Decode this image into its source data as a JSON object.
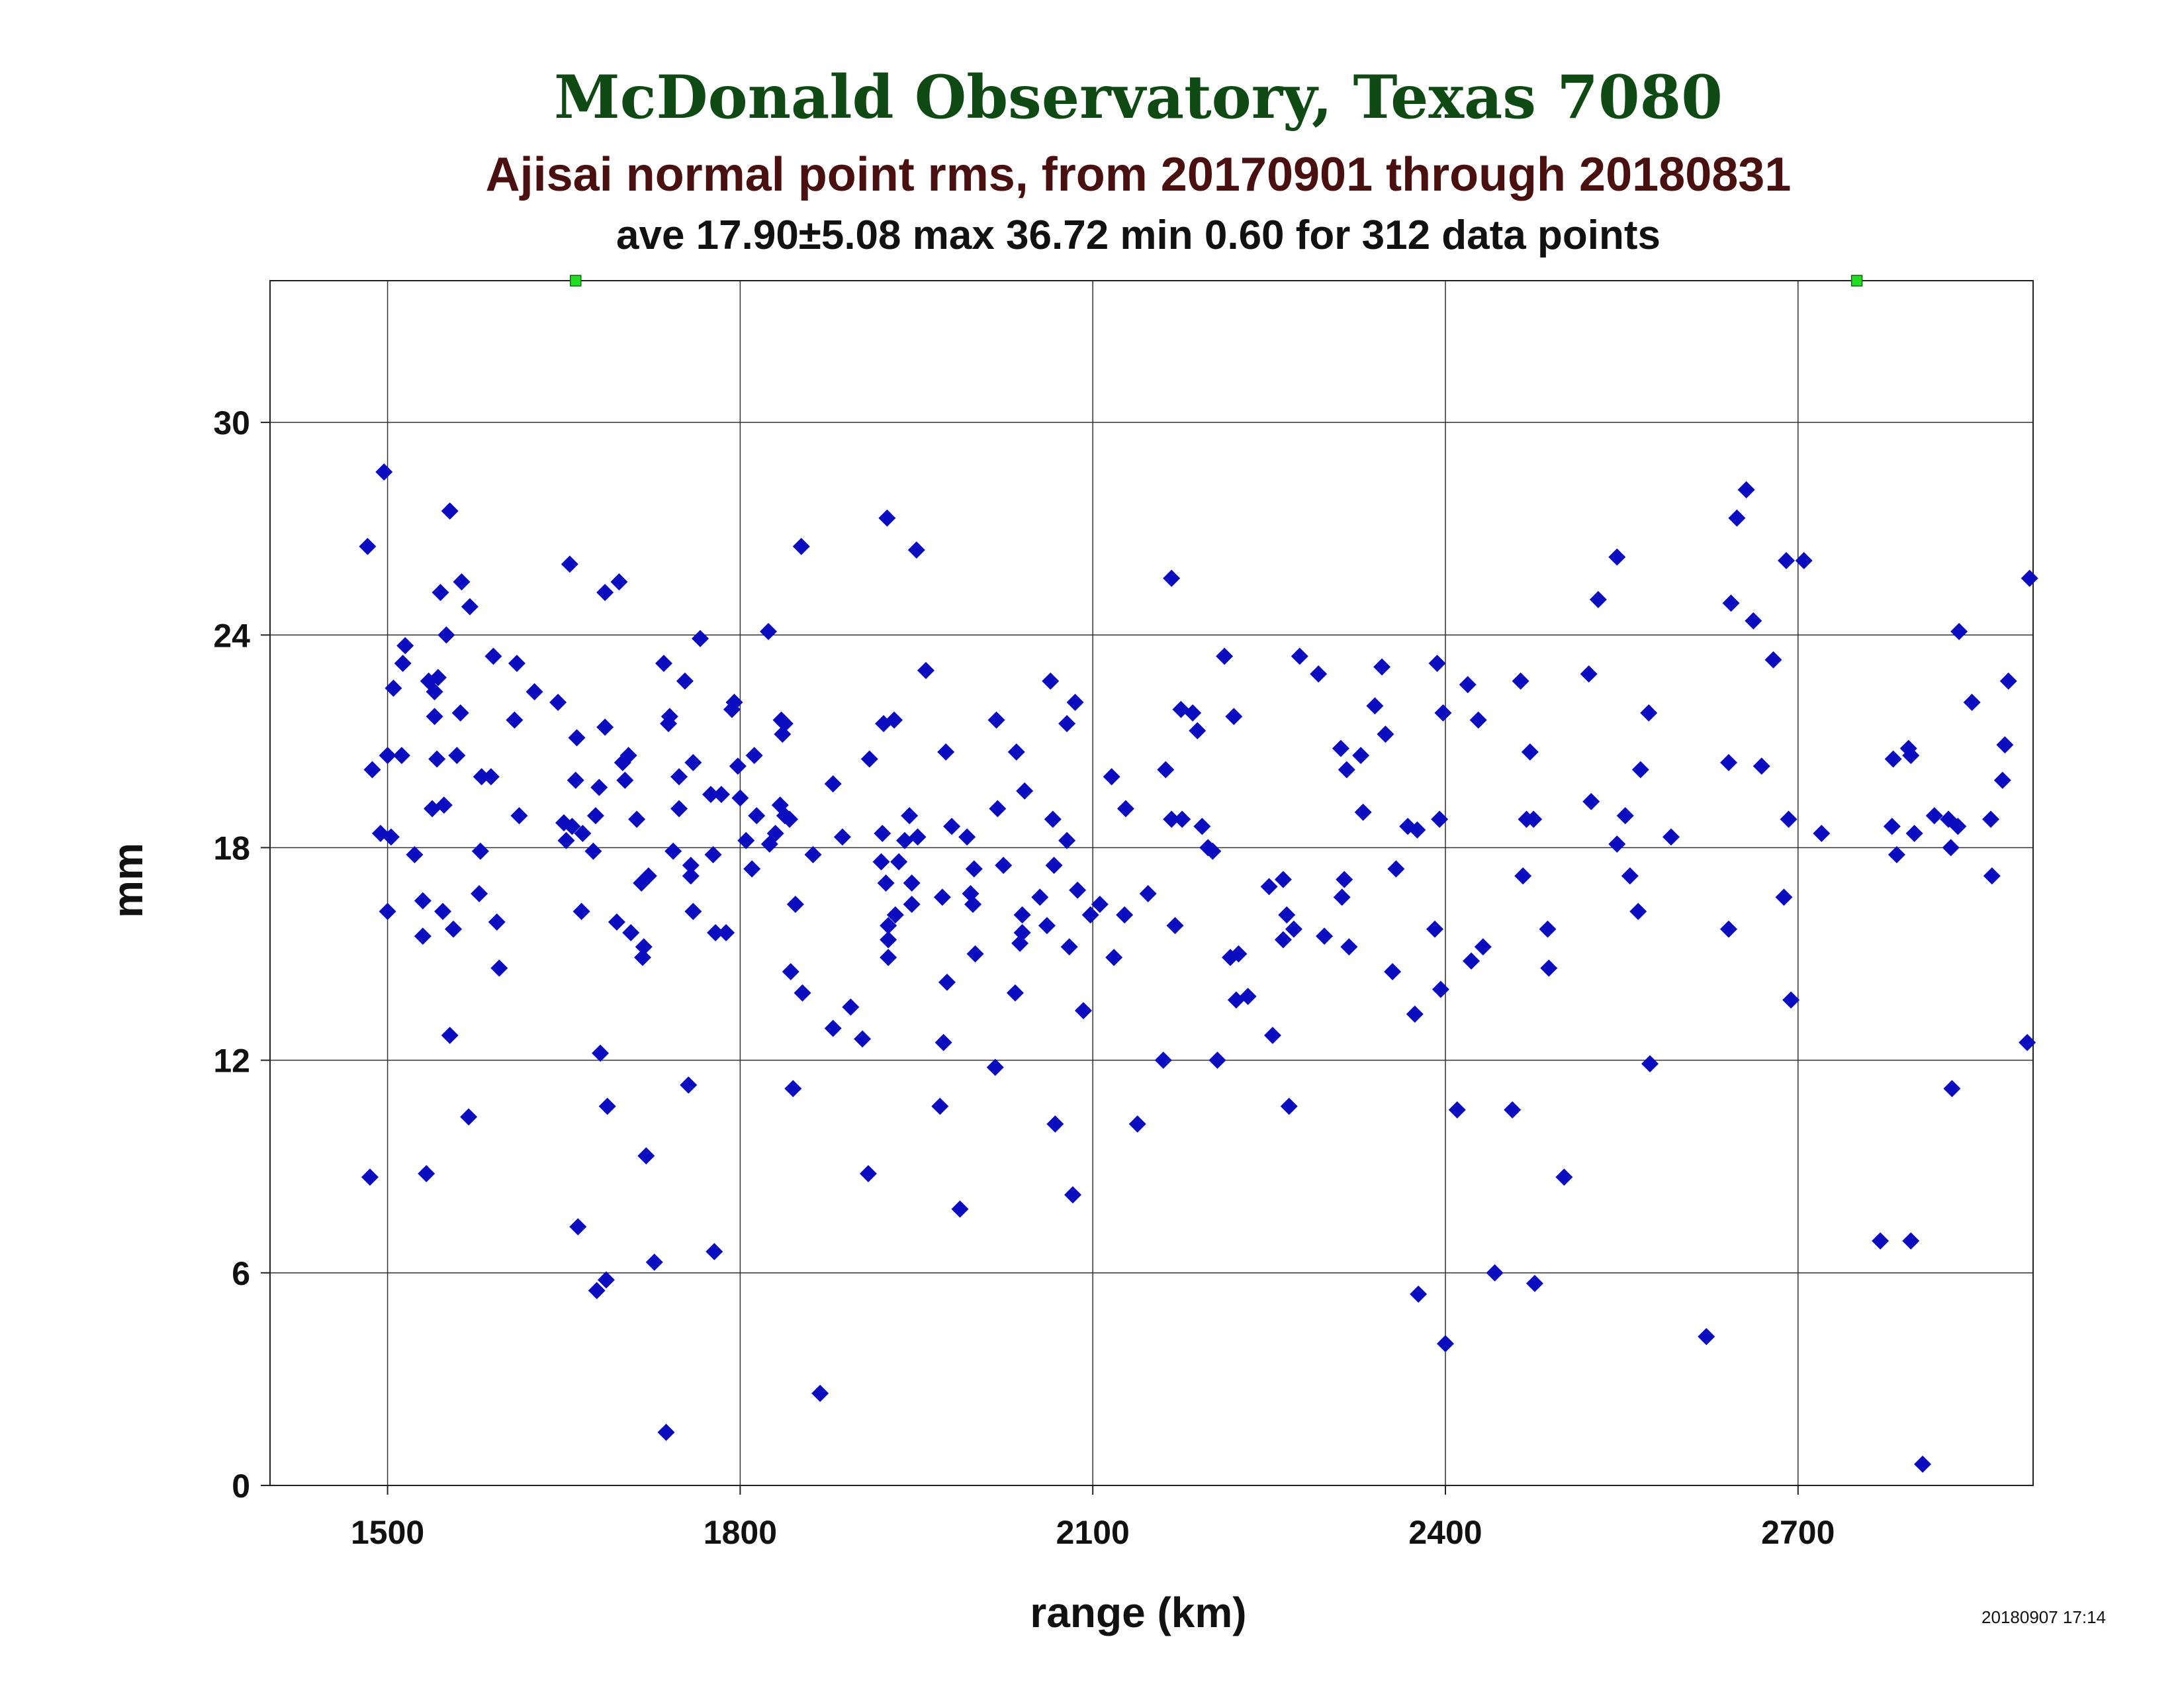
{
  "chart_data": {
    "type": "scatter",
    "title": "McDonald Observatory, Texas 7080",
    "subtitle": "Ajisai normal point rms, from 20170901 through 20180831",
    "stats_line": "ave 17.90±5.08 max 36.72 min 0.60 for 312 data points",
    "xlabel": "range (km)",
    "ylabel": "mm",
    "timestamp": "20180907 17:14",
    "xlim": [
      1400,
      2900
    ],
    "ylim": [
      0,
      34
    ],
    "x_ticks": [
      1500,
      1800,
      2100,
      2400,
      2700
    ],
    "y_ticks": [
      0,
      6,
      12,
      18,
      24,
      30
    ],
    "grid": true,
    "colors": {
      "points": "#0b0bbf",
      "offscale": "#22dd22",
      "title": "#0f4a14",
      "subtitle": "#4a0f0f"
    },
    "offscale_points_x": [
      1660,
      2750
    ],
    "points": [
      {
        "x": 1483,
        "y": 26.5
      },
      {
        "x": 1485,
        "y": 8.7
      },
      {
        "x": 1487,
        "y": 20.2
      },
      {
        "x": 1494,
        "y": 18.4
      },
      {
        "x": 1497,
        "y": 28.6
      },
      {
        "x": 1500,
        "y": 16.2
      },
      {
        "x": 1503,
        "y": 18.3
      },
      {
        "x": 1500,
        "y": 20.6
      },
      {
        "x": 1505,
        "y": 22.5
      },
      {
        "x": 1512,
        "y": 20.6
      },
      {
        "x": 1513,
        "y": 23.2
      },
      {
        "x": 1515,
        "y": 23.7
      },
      {
        "x": 1523,
        "y": 17.8
      },
      {
        "x": 1530,
        "y": 15.5
      },
      {
        "x": 1530,
        "y": 16.5
      },
      {
        "x": 1533,
        "y": 8.8
      },
      {
        "x": 1535,
        "y": 22.7
      },
      {
        "x": 1538,
        "y": 19.1
      },
      {
        "x": 1540,
        "y": 21.7
      },
      {
        "x": 1540,
        "y": 22.4
      },
      {
        "x": 1542,
        "y": 20.5
      },
      {
        "x": 1543,
        "y": 22.8
      },
      {
        "x": 1545,
        "y": 25.2
      },
      {
        "x": 1547,
        "y": 16.2
      },
      {
        "x": 1548,
        "y": 19.2
      },
      {
        "x": 1550,
        "y": 24.0
      },
      {
        "x": 1553,
        "y": 12.7
      },
      {
        "x": 1553,
        "y": 27.5
      },
      {
        "x": 1556,
        "y": 15.7
      },
      {
        "x": 1559,
        "y": 20.6
      },
      {
        "x": 1562,
        "y": 21.8
      },
      {
        "x": 1563,
        "y": 25.5
      },
      {
        "x": 1569,
        "y": 10.4
      },
      {
        "x": 1570,
        "y": 24.8
      },
      {
        "x": 1578,
        "y": 16.7
      },
      {
        "x": 1579,
        "y": 17.9
      },
      {
        "x": 1580,
        "y": 20.0
      },
      {
        "x": 1588,
        "y": 20.0
      },
      {
        "x": 1590,
        "y": 23.4
      },
      {
        "x": 1593,
        "y": 15.9
      },
      {
        "x": 1595,
        "y": 14.6
      },
      {
        "x": 1608,
        "y": 21.6
      },
      {
        "x": 1610,
        "y": 23.2
      },
      {
        "x": 1612,
        "y": 18.9
      },
      {
        "x": 1625,
        "y": 22.4
      },
      {
        "x": 1645,
        "y": 22.1
      },
      {
        "x": 1650,
        "y": 18.7
      },
      {
        "x": 1652,
        "y": 18.2
      },
      {
        "x": 1655,
        "y": 26.0
      },
      {
        "x": 1657,
        "y": 18.6
      },
      {
        "x": 1660,
        "y": 19.9
      },
      {
        "x": 1661,
        "y": 21.1
      },
      {
        "x": 1662,
        "y": 7.3
      },
      {
        "x": 1665,
        "y": 16.2
      },
      {
        "x": 1666,
        "y": 18.4
      },
      {
        "x": 1675,
        "y": 17.9
      },
      {
        "x": 1677,
        "y": 18.9
      },
      {
        "x": 1678,
        "y": 5.5
      },
      {
        "x": 1680,
        "y": 19.7
      },
      {
        "x": 1681,
        "y": 12.2
      },
      {
        "x": 1685,
        "y": 21.4
      },
      {
        "x": 1686,
        "y": 5.8
      },
      {
        "x": 1687,
        "y": 10.7
      },
      {
        "x": 1685,
        "y": 25.2
      },
      {
        "x": 1695,
        "y": 15.9
      },
      {
        "x": 1697,
        "y": 25.5
      },
      {
        "x": 1700,
        "y": 20.4
      },
      {
        "x": 1702,
        "y": 19.9
      },
      {
        "x": 1705,
        "y": 20.6
      },
      {
        "x": 1707,
        "y": 15.6
      },
      {
        "x": 1712,
        "y": 18.8
      },
      {
        "x": 1716,
        "y": 17.0
      },
      {
        "x": 1717,
        "y": 14.9
      },
      {
        "x": 1718,
        "y": 15.2
      },
      {
        "x": 1720,
        "y": 9.3
      },
      {
        "x": 1722,
        "y": 17.2
      },
      {
        "x": 1727,
        "y": 6.3
      },
      {
        "x": 1735,
        "y": 23.2
      },
      {
        "x": 1737,
        "y": 1.5
      },
      {
        "x": 1739,
        "y": 21.5
      },
      {
        "x": 1740,
        "y": 21.7
      },
      {
        "x": 1743,
        "y": 17.9
      },
      {
        "x": 1748,
        "y": 19.1
      },
      {
        "x": 1748,
        "y": 20.0
      },
      {
        "x": 1753,
        "y": 22.7
      },
      {
        "x": 1756,
        "y": 11.3
      },
      {
        "x": 1758,
        "y": 17.5
      },
      {
        "x": 1758,
        "y": 17.2
      },
      {
        "x": 1760,
        "y": 20.4
      },
      {
        "x": 1760,
        "y": 16.2
      },
      {
        "x": 1766,
        "y": 23.9
      },
      {
        "x": 1775,
        "y": 19.5
      },
      {
        "x": 1777,
        "y": 17.8
      },
      {
        "x": 1778,
        "y": 6.6
      },
      {
        "x": 1779,
        "y": 15.6
      },
      {
        "x": 1784,
        "y": 19.5
      },
      {
        "x": 1788,
        "y": 15.6
      },
      {
        "x": 1793,
        "y": 21.9
      },
      {
        "x": 1795,
        "y": 22.1
      },
      {
        "x": 1798,
        "y": 20.3
      },
      {
        "x": 1800,
        "y": 19.4
      },
      {
        "x": 1805,
        "y": 18.2
      },
      {
        "x": 1810,
        "y": 17.4
      },
      {
        "x": 1812,
        "y": 20.6
      },
      {
        "x": 1814,
        "y": 18.9
      },
      {
        "x": 1824,
        "y": 24.1
      },
      {
        "x": 1825,
        "y": 18.1
      },
      {
        "x": 1830,
        "y": 18.4
      },
      {
        "x": 1834,
        "y": 19.2
      },
      {
        "x": 1835,
        "y": 21.6
      },
      {
        "x": 1836,
        "y": 21.2
      },
      {
        "x": 1838,
        "y": 21.5
      },
      {
        "x": 1838,
        "y": 18.9
      },
      {
        "x": 1842,
        "y": 18.8
      },
      {
        "x": 1843,
        "y": 14.5
      },
      {
        "x": 1845,
        "y": 11.2
      },
      {
        "x": 1847,
        "y": 16.4
      },
      {
        "x": 1852,
        "y": 26.5
      },
      {
        "x": 1853,
        "y": 13.9
      },
      {
        "x": 1862,
        "y": 17.8
      },
      {
        "x": 1868,
        "y": 2.6
      },
      {
        "x": 1879,
        "y": 19.8
      },
      {
        "x": 1879,
        "y": 12.9
      },
      {
        "x": 1887,
        "y": 18.3
      },
      {
        "x": 1894,
        "y": 13.5
      },
      {
        "x": 1904,
        "y": 12.6
      },
      {
        "x": 1909,
        "y": 8.8
      },
      {
        "x": 1910,
        "y": 20.5
      },
      {
        "x": 1920,
        "y": 17.6
      },
      {
        "x": 1921,
        "y": 18.4
      },
      {
        "x": 1922,
        "y": 21.5
      },
      {
        "x": 1924,
        "y": 17.0
      },
      {
        "x": 1925,
        "y": 27.3
      },
      {
        "x": 1926,
        "y": 15.4
      },
      {
        "x": 1926,
        "y": 15.8
      },
      {
        "x": 1926,
        "y": 14.9
      },
      {
        "x": 1931,
        "y": 21.6
      },
      {
        "x": 1932,
        "y": 16.1
      },
      {
        "x": 1935,
        "y": 17.6
      },
      {
        "x": 1940,
        "y": 18.2
      },
      {
        "x": 1944,
        "y": 18.9
      },
      {
        "x": 1946,
        "y": 17.0
      },
      {
        "x": 1946,
        "y": 16.4
      },
      {
        "x": 1950,
        "y": 26.4
      },
      {
        "x": 1951,
        "y": 18.3
      },
      {
        "x": 1958,
        "y": 23.0
      },
      {
        "x": 1970,
        "y": 10.7
      },
      {
        "x": 1972,
        "y": 16.6
      },
      {
        "x": 1973,
        "y": 12.5
      },
      {
        "x": 1975,
        "y": 20.7
      },
      {
        "x": 1976,
        "y": 14.2
      },
      {
        "x": 1980,
        "y": 18.6
      },
      {
        "x": 1987,
        "y": 7.8
      },
      {
        "x": 1993,
        "y": 18.3
      },
      {
        "x": 1996,
        "y": 16.7
      },
      {
        "x": 1998,
        "y": 16.4
      },
      {
        "x": 1999,
        "y": 17.4
      },
      {
        "x": 2000,
        "y": 15.0
      },
      {
        "x": 2017,
        "y": 11.8
      },
      {
        "x": 2018,
        "y": 21.6
      },
      {
        "x": 2019,
        "y": 19.1
      },
      {
        "x": 2024,
        "y": 17.5
      },
      {
        "x": 2034,
        "y": 13.9
      },
      {
        "x": 2035,
        "y": 20.7
      },
      {
        "x": 2038,
        "y": 15.3
      },
      {
        "x": 2040,
        "y": 15.6
      },
      {
        "x": 2040,
        "y": 16.1
      },
      {
        "x": 2042,
        "y": 19.6
      },
      {
        "x": 2055,
        "y": 16.6
      },
      {
        "x": 2061,
        "y": 15.8
      },
      {
        "x": 2064,
        "y": 22.7
      },
      {
        "x": 2066,
        "y": 18.8
      },
      {
        "x": 2067,
        "y": 17.5
      },
      {
        "x": 2068,
        "y": 10.2
      },
      {
        "x": 2078,
        "y": 18.2
      },
      {
        "x": 2078,
        "y": 21.5
      },
      {
        "x": 2080,
        "y": 15.2
      },
      {
        "x": 2083,
        "y": 8.2
      },
      {
        "x": 2085,
        "y": 22.1
      },
      {
        "x": 2087,
        "y": 16.8
      },
      {
        "x": 2092,
        "y": 13.4
      },
      {
        "x": 2098,
        "y": 16.1
      },
      {
        "x": 2106,
        "y": 16.4
      },
      {
        "x": 2116,
        "y": 20.0
      },
      {
        "x": 2118,
        "y": 14.9
      },
      {
        "x": 2127,
        "y": 16.1
      },
      {
        "x": 2128,
        "y": 19.1
      },
      {
        "x": 2138,
        "y": 10.2
      },
      {
        "x": 2147,
        "y": 16.7
      },
      {
        "x": 2160,
        "y": 12.0
      },
      {
        "x": 2162,
        "y": 20.2
      },
      {
        "x": 2167,
        "y": 18.8
      },
      {
        "x": 2167,
        "y": 25.6
      },
      {
        "x": 2170,
        "y": 15.8
      },
      {
        "x": 2175,
        "y": 21.9
      },
      {
        "x": 2176,
        "y": 18.8
      },
      {
        "x": 2185,
        "y": 21.8
      },
      {
        "x": 2189,
        "y": 21.3
      },
      {
        "x": 2193,
        "y": 18.6
      },
      {
        "x": 2198,
        "y": 18.0
      },
      {
        "x": 2202,
        "y": 17.9
      },
      {
        "x": 2206,
        "y": 12.0
      },
      {
        "x": 2212,
        "y": 23.4
      },
      {
        "x": 2217,
        "y": 14.9
      },
      {
        "x": 2220,
        "y": 21.7
      },
      {
        "x": 2222,
        "y": 13.7
      },
      {
        "x": 2224,
        "y": 15.0
      },
      {
        "x": 2232,
        "y": 13.8
      },
      {
        "x": 2250,
        "y": 16.9
      },
      {
        "x": 2253,
        "y": 12.7
      },
      {
        "x": 2262,
        "y": 17.1
      },
      {
        "x": 2262,
        "y": 15.4
      },
      {
        "x": 2265,
        "y": 16.1
      },
      {
        "x": 2267,
        "y": 10.7
      },
      {
        "x": 2271,
        "y": 15.7
      },
      {
        "x": 2276,
        "y": 23.4
      },
      {
        "x": 2292,
        "y": 22.9
      },
      {
        "x": 2297,
        "y": 15.5
      },
      {
        "x": 2311,
        "y": 20.8
      },
      {
        "x": 2312,
        "y": 16.6
      },
      {
        "x": 2314,
        "y": 17.1
      },
      {
        "x": 2316,
        "y": 20.2
      },
      {
        "x": 2318,
        "y": 15.2
      },
      {
        "x": 2328,
        "y": 20.6
      },
      {
        "x": 2330,
        "y": 19.0
      },
      {
        "x": 2340,
        "y": 22.0
      },
      {
        "x": 2346,
        "y": 23.1
      },
      {
        "x": 2349,
        "y": 21.2
      },
      {
        "x": 2355,
        "y": 14.5
      },
      {
        "x": 2358,
        "y": 17.4
      },
      {
        "x": 2368,
        "y": 18.6
      },
      {
        "x": 2374,
        "y": 13.3
      },
      {
        "x": 2376,
        "y": 18.5
      },
      {
        "x": 2377,
        "y": 5.4
      },
      {
        "x": 2391,
        "y": 15.7
      },
      {
        "x": 2393,
        "y": 23.2
      },
      {
        "x": 2395,
        "y": 18.8
      },
      {
        "x": 2396,
        "y": 14.0
      },
      {
        "x": 2398,
        "y": 21.8
      },
      {
        "x": 2400,
        "y": 4.0
      },
      {
        "x": 2410,
        "y": 10.6
      },
      {
        "x": 2419,
        "y": 22.6
      },
      {
        "x": 2422,
        "y": 14.8
      },
      {
        "x": 2428,
        "y": 21.6
      },
      {
        "x": 2432,
        "y": 15.2
      },
      {
        "x": 2442,
        "y": 6.0
      },
      {
        "x": 2457,
        "y": 10.6
      },
      {
        "x": 2464,
        "y": 22.7
      },
      {
        "x": 2466,
        "y": 17.2
      },
      {
        "x": 2469,
        "y": 18.8
      },
      {
        "x": 2472,
        "y": 20.7
      },
      {
        "x": 2475,
        "y": 18.8
      },
      {
        "x": 2476,
        "y": 5.7
      },
      {
        "x": 2487,
        "y": 15.7
      },
      {
        "x": 2488,
        "y": 14.6
      },
      {
        "x": 2501,
        "y": 8.7
      },
      {
        "x": 2522,
        "y": 22.9
      },
      {
        "x": 2524,
        "y": 19.3
      },
      {
        "x": 2530,
        "y": 25.0
      },
      {
        "x": 2546,
        "y": 26.2
      },
      {
        "x": 2546,
        "y": 18.1
      },
      {
        "x": 2553,
        "y": 18.9
      },
      {
        "x": 2557,
        "y": 17.2
      },
      {
        "x": 2564,
        "y": 16.2
      },
      {
        "x": 2566,
        "y": 20.2
      },
      {
        "x": 2573,
        "y": 21.8
      },
      {
        "x": 2574,
        "y": 11.9
      },
      {
        "x": 2592,
        "y": 18.3
      },
      {
        "x": 2622,
        "y": 4.2
      },
      {
        "x": 2641,
        "y": 15.7
      },
      {
        "x": 2641,
        "y": 20.4
      },
      {
        "x": 2643,
        "y": 24.9
      },
      {
        "x": 2648,
        "y": 27.3
      },
      {
        "x": 2656,
        "y": 28.1
      },
      {
        "x": 2662,
        "y": 24.4
      },
      {
        "x": 2669,
        "y": 20.3
      },
      {
        "x": 2679,
        "y": 23.3
      },
      {
        "x": 2688,
        "y": 16.6
      },
      {
        "x": 2690,
        "y": 26.1
      },
      {
        "x": 2692,
        "y": 18.8
      },
      {
        "x": 2694,
        "y": 13.7
      },
      {
        "x": 2705,
        "y": 26.1
      },
      {
        "x": 2720,
        "y": 18.4
      },
      {
        "x": 2770,
        "y": 6.9
      },
      {
        "x": 2780,
        "y": 18.6
      },
      {
        "x": 2781,
        "y": 20.5
      },
      {
        "x": 2784,
        "y": 17.8
      },
      {
        "x": 2794,
        "y": 20.8
      },
      {
        "x": 2796,
        "y": 20.6
      },
      {
        "x": 2796,
        "y": 6.9
      },
      {
        "x": 2799,
        "y": 18.4
      },
      {
        "x": 2806,
        "y": 0.6
      },
      {
        "x": 2816,
        "y": 18.9
      },
      {
        "x": 2828,
        "y": 18.8
      },
      {
        "x": 2830,
        "y": 18.0
      },
      {
        "x": 2831,
        "y": 11.2
      },
      {
        "x": 2836,
        "y": 18.6
      },
      {
        "x": 2837,
        "y": 24.1
      },
      {
        "x": 2848,
        "y": 22.1
      },
      {
        "x": 2864,
        "y": 18.8
      },
      {
        "x": 2865,
        "y": 17.2
      },
      {
        "x": 2874,
        "y": 19.9
      },
      {
        "x": 2876,
        "y": 20.9
      },
      {
        "x": 2879,
        "y": 22.7
      },
      {
        "x": 2895,
        "y": 12.5
      },
      {
        "x": 2897,
        "y": 25.6
      }
    ]
  }
}
